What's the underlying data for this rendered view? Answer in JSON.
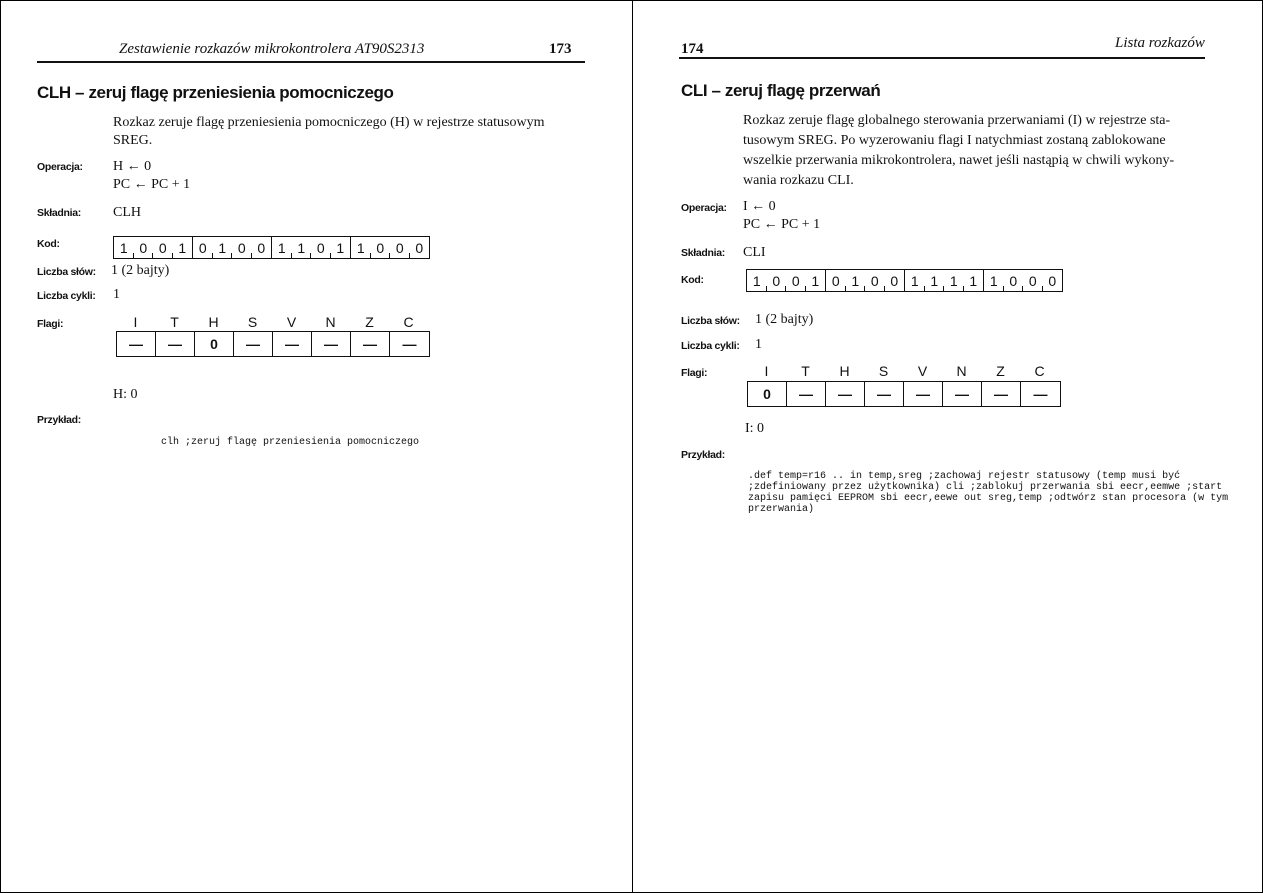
{
  "left_page": {
    "header": "Zestawienie rozkazów mikrokontrolera AT90S2313",
    "page_number": "173",
    "title": "CLH – zeruj flagę przeniesienia pomocniczego",
    "description": [
      "Rozkaz zeruje flagę przeniesienia pomocniczego (H) w rejestrze statusowym",
      "SREG."
    ],
    "operation_label": "Operacja:",
    "operation": [
      "H ← 0",
      "PC ← PC + 1"
    ],
    "syntax_label": "Składnia:",
    "syntax": "CLH",
    "code_label": "Kod:",
    "code": [
      [
        "1",
        "0",
        "0",
        "1"
      ],
      [
        "0",
        "1",
        "0",
        "0"
      ],
      [
        "1",
        "1",
        "0",
        "1"
      ],
      [
        "1",
        "0",
        "0",
        "0"
      ]
    ],
    "words_label": "Liczba słów:",
    "words": "1 (2 bajty)",
    "cycles_label": "Liczba cykli:",
    "cycles": "1",
    "flags_label": "Flagi:",
    "flag_names": [
      "I",
      "T",
      "H",
      "S",
      "V",
      "N",
      "Z",
      "C"
    ],
    "flag_values": [
      "—",
      "—",
      "0",
      "—",
      "—",
      "—",
      "—",
      "—"
    ],
    "flag_note": "H: 0",
    "example_label": "Przykład:",
    "example": "clh              ;zeruj flagę przeniesienia pomocniczego"
  },
  "right_page": {
    "header": "Lista rozkazów",
    "page_number": "174",
    "title": "CLI – zeruj flagę przerwań",
    "description": [
      "Rozkaz zeruje flagę globalnego sterowania przerwaniami (I) w rejestrze sta-",
      "tusowym SREG. Po wyzerowaniu flagi I natychmiast zostaną zablokowane",
      "wszelkie przerwania mikrokontrolera, nawet jeśli nastąpią w chwili wykony-",
      "wania rozkazu CLI."
    ],
    "operation_label": "Operacja:",
    "operation": [
      "I ← 0",
      "PC ← PC + 1"
    ],
    "syntax_label": "Składnia:",
    "syntax": "CLI",
    "code_label": "Kod:",
    "code": [
      [
        "1",
        "0",
        "0",
        "1"
      ],
      [
        "0",
        "1",
        "0",
        "0"
      ],
      [
        "1",
        "1",
        "1",
        "1"
      ],
      [
        "1",
        "0",
        "0",
        "0"
      ]
    ],
    "words_label": "Liczba słów:",
    "words": "1 (2 bajty)",
    "cycles_label": "Liczba cykli:",
    "cycles": "1",
    "flags_label": "Flagi:",
    "flag_names": [
      "I",
      "T",
      "H",
      "S",
      "V",
      "N",
      "Z",
      "C"
    ],
    "flag_values": [
      "0",
      "—",
      "—",
      "—",
      "—",
      "—",
      "—",
      "—"
    ],
    "flag_note": "I: 0",
    "example_label": "Przykład:",
    "example": ".def     temp=r16\n         ..\n         in      temp,sreg   ;zachowaj rejestr statusowy (temp musi być\n                             ;zdefiniowany przez użytkownika)\n         cli                 ;zablokuj przerwania\n         sbi     eecr,eemwe  ;start zapisu pamięci EEPROM\n         sbi     eecr,eewe\n         out     sreg,temp   ;odtwórz stan procesora (w tym przerwania)"
  }
}
